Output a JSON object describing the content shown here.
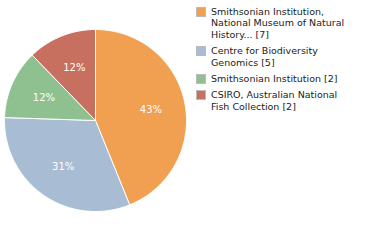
{
  "chart_data": {
    "type": "pie",
    "categories": [
      "Smithsonian Institution,\nNational Museum of Natural\nHistory... [7]",
      "Centre for Biodiversity\nGenomics [5]",
      "Smithsonian Institution [2]",
      "CSIRO, Australian National\nFish Collection [2]"
    ],
    "values": [
      43,
      31,
      12,
      12
    ],
    "value_labels": [
      "43%",
      "31%",
      "12%",
      "12%"
    ],
    "colors": [
      "#f0a050",
      "#a8bcd4",
      "#8fc08f",
      "#c87060"
    ],
    "data_labels": true,
    "legend": "right"
  }
}
